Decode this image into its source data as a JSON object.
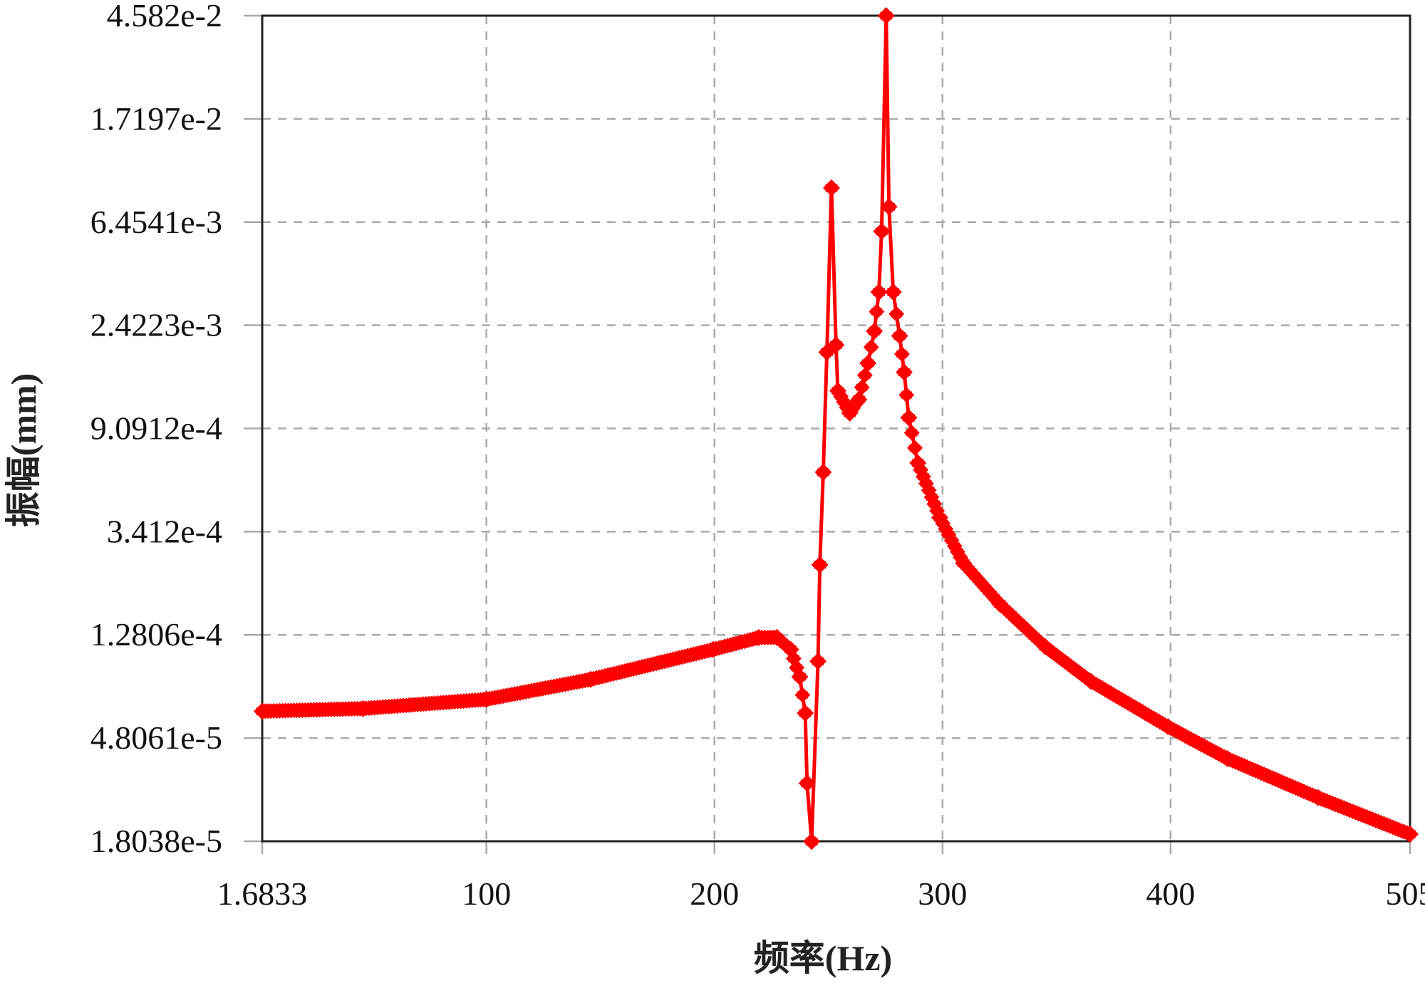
{
  "chart_data": {
    "type": "line",
    "title": "",
    "xlabel": "频率(Hz)",
    "ylabel": "振幅(mm)",
    "xlim": [
      1.6833,
      505
    ],
    "ylim": [
      1.8038e-05,
      0.04582
    ],
    "yscale": "log",
    "grid": true,
    "x_ticks": [
      "1.6833",
      "100",
      "200",
      "300",
      "400",
      "505"
    ],
    "x_tick_values": [
      1.6833,
      100,
      200,
      300,
      400,
      505
    ],
    "y_ticks": [
      "1.8038e-5",
      "4.8061e-5",
      "1.2806e-4",
      "3.412e-4",
      "9.0912e-4",
      "2.4223e-3",
      "6.4541e-3",
      "1.7197e-2",
      "4.582e-2"
    ],
    "y_tick_values": [
      1.8038e-05,
      4.8061e-05,
      0.00012806,
      0.0003412,
      0.00090912,
      0.0024223,
      0.0064541,
      0.017197,
      0.04582
    ],
    "series_color": "#ff0000",
    "marker": "diamond",
    "series": [
      {
        "x": [
          1.68,
          45.9,
          100,
          145.7,
          199.5,
          219.4,
          227.4,
          233.4,
          237.4,
          239.8,
          240.6,
          242.6,
          245.4,
          246.2,
          247.7,
          249.3,
          251.3,
          253.3,
          254.1,
          259.3,
          263.3,
          267.3,
          270.1,
          272.1,
          273.3,
          275.3,
          276.5,
          278.4,
          281.2,
          283.2,
          285.2,
          289.2,
          298.8,
          309.2,
          325.1,
          345.0,
          365.0,
          398.9,
          424.8,
          464.7,
          505
        ],
        "y": [
          6.2e-05,
          6.36e-05,
          6.94e-05,
          8.39e-05,
          0.0001115,
          0.0001248,
          0.000125,
          0.0001115,
          8.6e-05,
          6.09e-05,
          3.13e-05,
          1.8e-05,
          9.96e-05,
          0.000249,
          0.0006,
          0.001876,
          0.00893,
          0.00201,
          0.0013,
          0.001052,
          0.001198,
          0.00169,
          0.00229,
          0.00332,
          0.00591,
          0.04582,
          0.00746,
          0.00332,
          0.00219,
          0.00155,
          0.001007,
          0.000655,
          0.00039,
          0.000253,
          0.0001717,
          0.0001144,
          8.24e-05,
          5.35e-05,
          3.96e-05,
          2.73e-05,
          1.93e-05
        ]
      }
    ]
  }
}
